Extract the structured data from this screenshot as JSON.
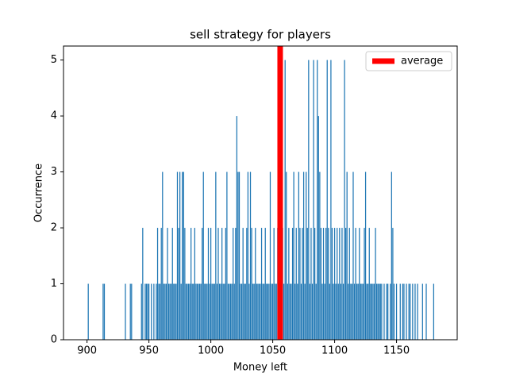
{
  "chart_data": {
    "type": "bar",
    "title": "sell strategy for players",
    "x_label": "Money left",
    "y_label": "Occurrence",
    "x": [
      901,
      913,
      914,
      931,
      935,
      936,
      944,
      945,
      947,
      948,
      949,
      950,
      952,
      954,
      956,
      957,
      958,
      959,
      960,
      961,
      962,
      963,
      964,
      965,
      966,
      967,
      968,
      969,
      970,
      971,
      972,
      973,
      974,
      975,
      976,
      977,
      978,
      979,
      980,
      981,
      982,
      983,
      984,
      985,
      986,
      987,
      988,
      989,
      990,
      991,
      992,
      993,
      994,
      995,
      996,
      997,
      998,
      999,
      1000,
      1001,
      1002,
      1003,
      1004,
      1005,
      1006,
      1007,
      1008,
      1009,
      1010,
      1011,
      1012,
      1013,
      1014,
      1015,
      1016,
      1017,
      1018,
      1019,
      1020,
      1021,
      1022,
      1023,
      1024,
      1025,
      1026,
      1027,
      1028,
      1029,
      1030,
      1031,
      1032,
      1033,
      1034,
      1035,
      1036,
      1037,
      1038,
      1039,
      1040,
      1041,
      1042,
      1043,
      1044,
      1045,
      1046,
      1047,
      1048,
      1049,
      1050,
      1051,
      1052,
      1053,
      1054,
      1055,
      1057,
      1058,
      1059,
      1060,
      1061,
      1062,
      1063,
      1064,
      1065,
      1066,
      1067,
      1068,
      1069,
      1070,
      1071,
      1072,
      1073,
      1074,
      1075,
      1076,
      1077,
      1078,
      1079,
      1080,
      1081,
      1082,
      1083,
      1084,
      1085,
      1086,
      1087,
      1088,
      1089,
      1090,
      1091,
      1092,
      1093,
      1094,
      1095,
      1096,
      1097,
      1098,
      1099,
      1100,
      1101,
      1102,
      1103,
      1104,
      1105,
      1106,
      1107,
      1108,
      1109,
      1110,
      1111,
      1112,
      1113,
      1114,
      1115,
      1116,
      1117,
      1118,
      1119,
      1120,
      1121,
      1122,
      1123,
      1124,
      1125,
      1126,
      1127,
      1128,
      1129,
      1130,
      1131,
      1132,
      1133,
      1134,
      1135,
      1136,
      1137,
      1138,
      1140,
      1142,
      1143,
      1145,
      1146,
      1147,
      1148,
      1150,
      1153,
      1155,
      1156,
      1158,
      1160,
      1161,
      1163,
      1165,
      1167,
      1171,
      1174,
      1180
    ],
    "values": [
      1,
      1,
      1,
      1,
      1,
      1,
      1,
      2,
      1,
      1,
      1,
      1,
      1,
      1,
      1,
      2,
      1,
      1,
      2,
      3,
      1,
      1,
      1,
      2,
      1,
      1,
      1,
      2,
      1,
      1,
      1,
      3,
      2,
      3,
      1,
      3,
      3,
      2,
      1,
      1,
      1,
      1,
      2,
      1,
      1,
      2,
      1,
      1,
      1,
      1,
      1,
      2,
      3,
      1,
      1,
      1,
      2,
      1,
      2,
      1,
      1,
      1,
      3,
      1,
      2,
      1,
      1,
      2,
      1,
      1,
      2,
      3,
      1,
      1,
      1,
      1,
      2,
      1,
      2,
      4,
      3,
      3,
      1,
      1,
      2,
      1,
      1,
      2,
      3,
      1,
      3,
      2,
      1,
      1,
      2,
      1,
      1,
      1,
      1,
      2,
      1,
      1,
      2,
      1,
      1,
      1,
      3,
      1,
      1,
      2,
      1,
      1,
      2,
      1,
      1,
      2,
      1,
      5,
      3,
      1,
      2,
      1,
      1,
      2,
      3,
      1,
      2,
      1,
      3,
      2,
      1,
      2,
      3,
      1,
      3,
      2,
      5,
      1,
      2,
      1,
      5,
      2,
      1,
      5,
      4,
      3,
      2,
      1,
      2,
      1,
      2,
      5,
      2,
      1,
      5,
      2,
      1,
      2,
      1,
      2,
      1,
      2,
      1,
      2,
      1,
      5,
      2,
      3,
      1,
      2,
      1,
      1,
      3,
      1,
      2,
      1,
      1,
      2,
      1,
      1,
      1,
      2,
      3,
      1,
      1,
      2,
      1,
      1,
      1,
      1,
      2,
      1,
      1,
      1,
      1,
      1,
      1,
      1,
      1,
      1,
      3,
      2,
      1,
      1,
      1,
      1,
      1,
      1,
      1,
      1,
      1,
      1,
      1,
      1,
      1,
      1
    ],
    "color": "#1f77b4",
    "average": {
      "name": "average",
      "value": 1056,
      "color": "#ff0000"
    },
    "legend": "upper right",
    "xlim": [
      881,
      1199
    ],
    "xticks": [
      900,
      950,
      1000,
      1050,
      1100,
      1150
    ],
    "ylim": [
      0,
      5.25
    ],
    "yticks": [
      0,
      1,
      2,
      3,
      4,
      5
    ]
  }
}
